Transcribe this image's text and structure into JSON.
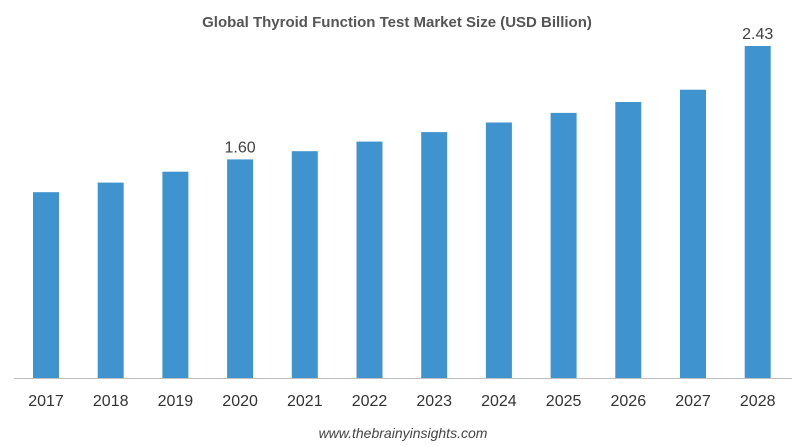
{
  "chart_data": {
    "type": "bar",
    "title": "Global Thyroid Function Test Market Size (USD Billion)",
    "categories": [
      "2017",
      "2018",
      "2019",
      "2020",
      "2021",
      "2022",
      "2023",
      "2024",
      "2025",
      "2026",
      "2027",
      "2028"
    ],
    "values": [
      1.36,
      1.43,
      1.51,
      1.6,
      1.66,
      1.73,
      1.8,
      1.87,
      1.94,
      2.02,
      2.11,
      2.43
    ],
    "data_labels": [
      {
        "category": "2020",
        "text": "1.60"
      },
      {
        "category": "2028",
        "text": "2.43"
      }
    ],
    "xlabel": "",
    "ylabel": "",
    "ylim": [
      0,
      2.43
    ],
    "grid": false,
    "legend": "none",
    "colors": {
      "bar": "#3f93ce",
      "axis": "#bfbfbf"
    }
  },
  "footer": {
    "source": "www.thebrainyinsights.com"
  }
}
